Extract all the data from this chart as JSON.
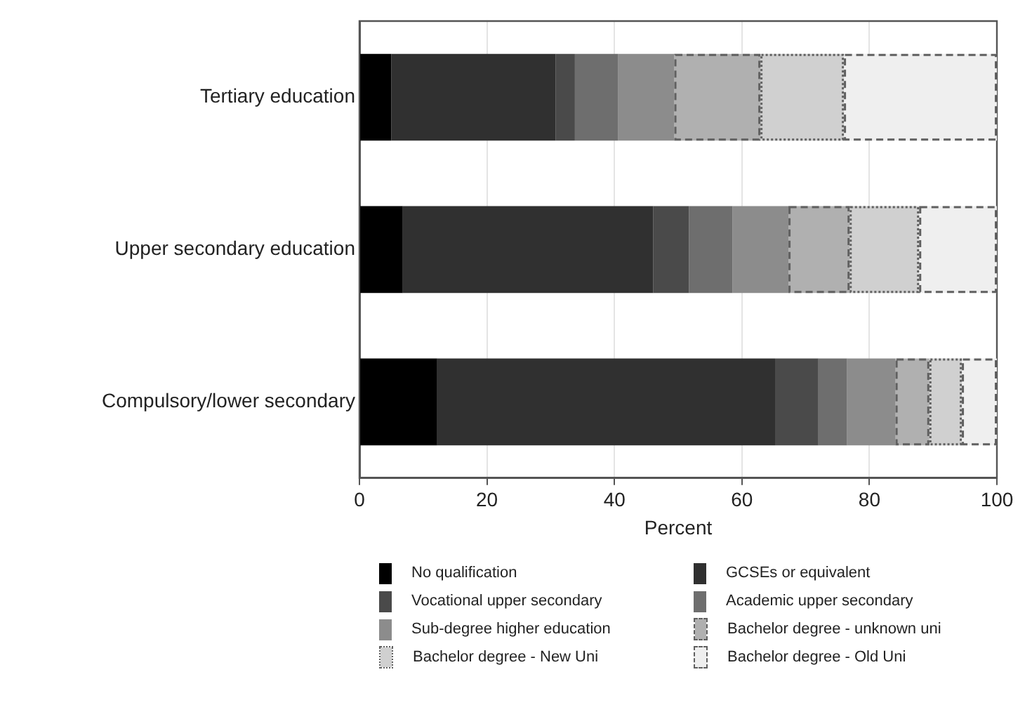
{
  "chart_data": {
    "type": "bar",
    "orientation": "horizontal",
    "stacked": true,
    "xlabel": "Percent",
    "categories": [
      "Tertiary education",
      "Upper secondary education",
      "Compulsory/lower secondary"
    ],
    "xlim": [
      0,
      100
    ],
    "xticks": [
      0,
      20,
      40,
      60,
      80,
      100
    ],
    "grid": "x",
    "legend": "bottom",
    "series": [
      {
        "name": "No qualification",
        "color": "#000000",
        "values": [
          5.0,
          6.8,
          12.2
        ]
      },
      {
        "name": "GCSEs or equivalent",
        "color": "#303030",
        "values": [
          25.8,
          39.3,
          53.0
        ]
      },
      {
        "name": "Vocational upper secondary",
        "color": "#4a4a4a",
        "values": [
          3.0,
          5.6,
          6.8
        ]
      },
      {
        "name": "Academic upper secondary",
        "color": "#6e6e6e",
        "values": [
          6.8,
          6.8,
          4.5
        ]
      },
      {
        "name": "Sub-degree higher education",
        "color": "#8c8c8c",
        "values": [
          8.8,
          8.8,
          7.6
        ]
      },
      {
        "name": "Bachelor degree - unknown uni",
        "color": "#b0b0b0",
        "line_style": "dashed",
        "values": [
          13.5,
          9.6,
          5.3
        ]
      },
      {
        "name": "Bachelor degree - New Uni",
        "color": "#d0d0d0",
        "line_style": "dotted",
        "values": [
          13.1,
          10.9,
          5.1
        ]
      },
      {
        "name": "Bachelor degree - Old Uni",
        "color": "#efefef",
        "line_style": "dashed",
        "values": [
          24.0,
          12.2,
          5.5
        ]
      }
    ]
  }
}
